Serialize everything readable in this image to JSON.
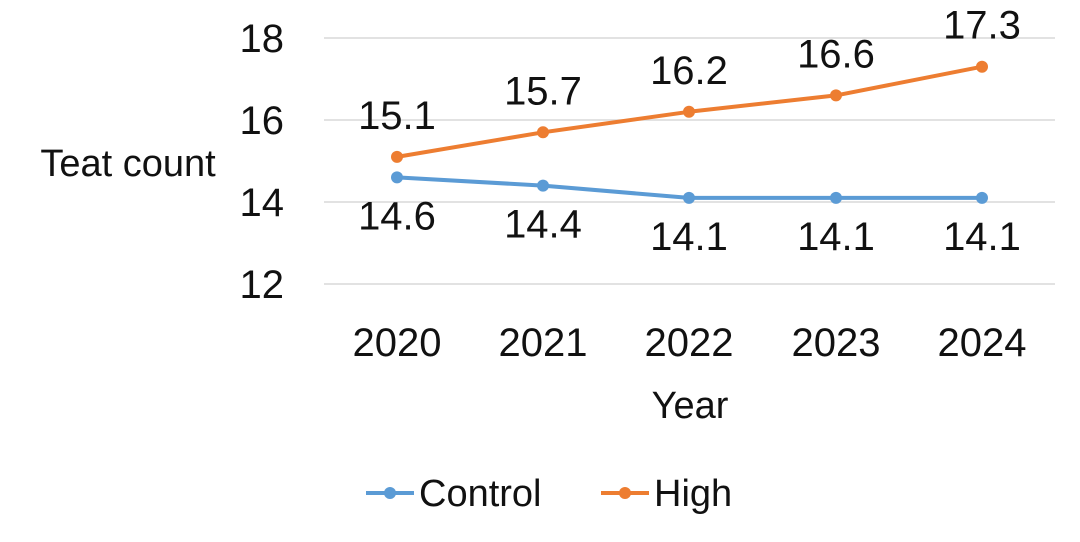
{
  "chart_data": {
    "type": "line",
    "title": "",
    "xlabel": "Year",
    "ylabel": "Teat count",
    "categories": [
      "2020",
      "2021",
      "2022",
      "2023",
      "2024"
    ],
    "ylim": [
      12,
      18
    ],
    "yticks": [
      "12",
      "14",
      "16",
      "18"
    ],
    "grid": true,
    "legend_position": "bottom",
    "series": [
      {
        "name": "Control",
        "color": "#5b9bd5",
        "values": [
          14.6,
          14.4,
          14.1,
          14.1,
          14.1
        ],
        "labels": [
          "14.6",
          "14.4",
          "14.1",
          "14.1",
          "14.1"
        ],
        "label_position": "below"
      },
      {
        "name": "High",
        "color": "#ed7d31",
        "values": [
          15.1,
          15.7,
          16.2,
          16.6,
          17.3
        ],
        "labels": [
          "15.1",
          "15.7",
          "16.2",
          "16.6",
          "17.3"
        ],
        "label_position": "above"
      }
    ]
  }
}
